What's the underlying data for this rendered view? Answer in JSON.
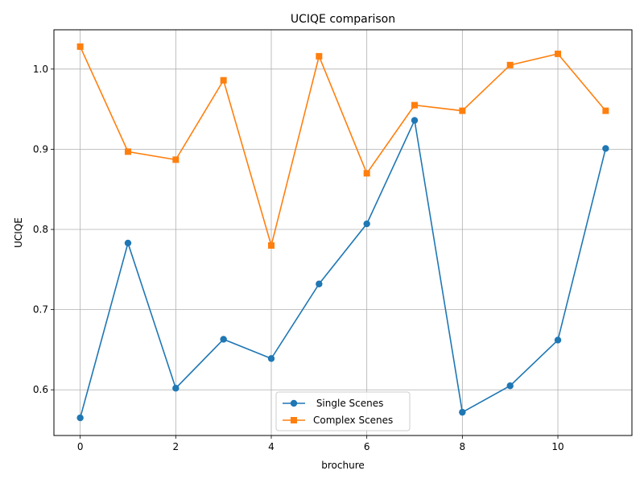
{
  "chart_data": {
    "type": "line",
    "title": "UCIQE comparison",
    "xlabel": "brochure",
    "ylabel": "UCIQE",
    "x": [
      0,
      1,
      2,
      3,
      4,
      5,
      6,
      7,
      8,
      9,
      10,
      11
    ],
    "xlim": [
      -0.55,
      11.55
    ],
    "ylim": [
      0.543,
      1.049
    ],
    "xticks": [
      0,
      2,
      4,
      6,
      8,
      10
    ],
    "xtick_labels": [
      "0",
      "2",
      "4",
      "6",
      "8",
      "10"
    ],
    "yticks": [
      0.6,
      0.7,
      0.8,
      0.9,
      1.0
    ],
    "ytick_labels": [
      "0.6",
      "0.7",
      "0.8",
      "0.9",
      "1.0"
    ],
    "grid": true,
    "legend_position": "bottom-center",
    "series": [
      {
        "name": " Single Scenes",
        "color": "#1f77b4",
        "marker": "circle",
        "values": [
          0.565,
          0.783,
          0.602,
          0.663,
          0.639,
          0.732,
          0.807,
          0.936,
          0.572,
          0.605,
          0.662,
          0.901
        ]
      },
      {
        "name": "Complex Scenes",
        "color": "#ff7f0e",
        "marker": "square",
        "values": [
          1.028,
          0.897,
          0.887,
          0.986,
          0.78,
          1.016,
          0.87,
          0.955,
          0.948,
          1.005,
          1.019,
          0.948
        ]
      }
    ]
  }
}
